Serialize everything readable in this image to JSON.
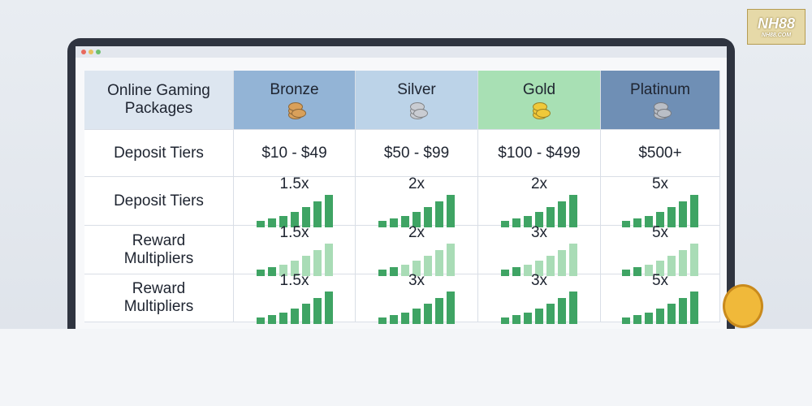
{
  "logo": {
    "text": "NH88",
    "subtext": "NH88.COM"
  },
  "table": {
    "header": [
      "Online Gaming Packages",
      "Bronze",
      "Silver",
      "Gold",
      "Platinum"
    ],
    "rows": [
      [
        "Deposit Tiers",
        "$10 - $49",
        "$50 - $99",
        "$100 - $499",
        "$500+"
      ],
      [
        "Deposit Tiers",
        "1.5x",
        "2x",
        "2x",
        "5x"
      ],
      [
        "Reward Multipliers",
        "1.5x",
        "2x",
        "3x",
        "5x"
      ],
      [
        "Reward Multipliers",
        "1.5x",
        "3x",
        "3x",
        "5x"
      ]
    ]
  }
}
